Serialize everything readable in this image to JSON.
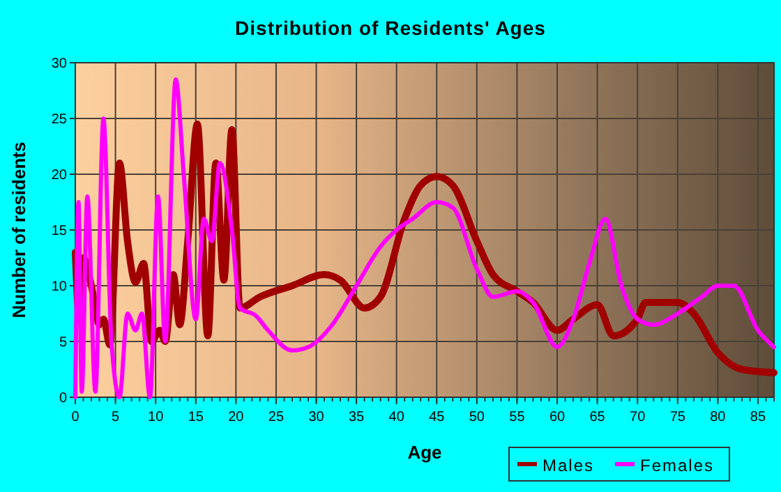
{
  "chart_data": {
    "type": "line",
    "title": "Distribution of Residents' Ages",
    "xlabel": "Age",
    "ylabel": "Number of residents",
    "xlim": [
      0,
      87
    ],
    "xticks": [
      0,
      5,
      10,
      15,
      20,
      25,
      30,
      35,
      40,
      45,
      50,
      55,
      60,
      65,
      70,
      75,
      80,
      85
    ],
    "ylim": [
      0,
      30
    ],
    "yticks": [
      0,
      5,
      10,
      15,
      20,
      25,
      30
    ],
    "grid": true,
    "legend": "bottom right",
    "series": [
      {
        "name": "Males",
        "color": "#a00000",
        "x": [
          0,
          0.5,
          1,
          2,
          3,
          3.5,
          4.3,
          5.5,
          6.5,
          7.5,
          8.5,
          9.5,
          10.5,
          11.2,
          12.2,
          13,
          14,
          15.2,
          16.5,
          17.5,
          18.5,
          19.5,
          20.5,
          23,
          27,
          31,
          33,
          36,
          38,
          41,
          43,
          45,
          47,
          50,
          52,
          55,
          57,
          60,
          62,
          65,
          67,
          70,
          71,
          75,
          77,
          80,
          83,
          87
        ],
        "values": [
          13,
          7,
          12.5,
          10,
          6.5,
          7,
          4.7,
          21,
          14,
          10.3,
          12,
          5,
          6,
          5,
          11,
          6.5,
          14,
          24.5,
          5.5,
          21,
          10.5,
          24,
          8,
          9,
          10,
          11,
          10.5,
          8,
          9,
          16,
          19,
          19.8,
          19,
          14,
          11,
          9.5,
          8.5,
          6,
          7,
          8.3,
          5.5,
          7,
          8.5,
          8.5,
          7.5,
          4,
          2.5,
          2.2
        ]
      },
      {
        "name": "Females",
        "color": "#ff00ff",
        "x": [
          0,
          0.4,
          0.8,
          1.5,
          2.5,
          3.5,
          4.5,
          5.5,
          6.5,
          7.5,
          8.3,
          9.3,
          10.3,
          11.2,
          12.5,
          13.5,
          15,
          16,
          17,
          18,
          19.5,
          20.5,
          22.5,
          24,
          27,
          29,
          32,
          35,
          38,
          40,
          42,
          45,
          47,
          50,
          52,
          55,
          57,
          60,
          62,
          64,
          66,
          68,
          70,
          72,
          75,
          78,
          80,
          82,
          85,
          87
        ],
        "values": [
          0,
          17.5,
          0.5,
          18,
          0.5,
          25,
          5,
          0,
          7.5,
          6,
          7.5,
          0,
          18,
          5,
          28.5,
          20,
          7,
          16,
          14,
          21,
          15,
          8,
          7.3,
          6,
          4.2,
          4.5,
          6.5,
          10,
          13.5,
          15,
          16,
          17.5,
          17,
          11.5,
          9,
          9.5,
          8.5,
          4.5,
          7,
          12,
          16,
          10,
          7,
          6.5,
          7.5,
          9,
          10,
          10,
          6,
          4.5
        ]
      }
    ]
  }
}
